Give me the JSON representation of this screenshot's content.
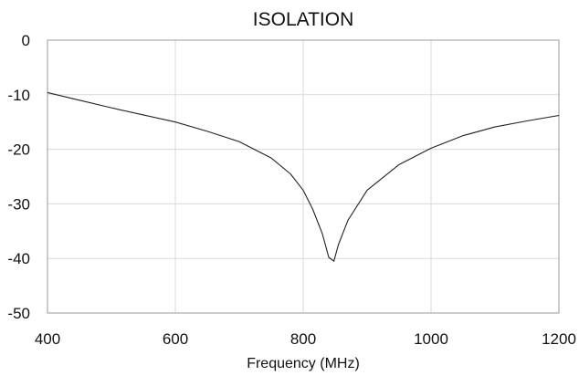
{
  "chart_data": {
    "type": "line",
    "title": "ISOLATION",
    "xlabel": "Frequency (MHz)",
    "ylabel": "",
    "xlim": [
      400,
      1200
    ],
    "ylim": [
      -50,
      0
    ],
    "x_ticks": [
      400,
      600,
      800,
      1000,
      1200
    ],
    "y_ticks": [
      0,
      -10,
      -20,
      -30,
      -40,
      -50
    ],
    "x_tick_labels": [
      "400",
      "600",
      "800",
      "1000",
      "1200"
    ],
    "y_tick_labels": [
      "0",
      "-10",
      "-20",
      "-30",
      "-40",
      "-50"
    ],
    "grid": true,
    "legend": "none",
    "line_color": "#222222",
    "grid_color": "#d9d9d9",
    "series": [
      {
        "x": [
          400,
          450,
          500,
          550,
          600,
          650,
          700,
          750,
          780,
          800,
          815,
          830,
          840,
          848,
          855,
          870,
          900,
          950,
          1000,
          1050,
          1100,
          1150,
          1200
        ],
        "y": [
          -9.6,
          -11.0,
          -12.4,
          -13.7,
          -15.0,
          -16.7,
          -18.6,
          -21.6,
          -24.5,
          -27.5,
          -31.0,
          -35.5,
          -39.8,
          -40.5,
          -37.5,
          -33.0,
          -27.5,
          -22.8,
          -19.8,
          -17.5,
          -15.9,
          -14.8,
          -13.8
        ]
      }
    ]
  }
}
